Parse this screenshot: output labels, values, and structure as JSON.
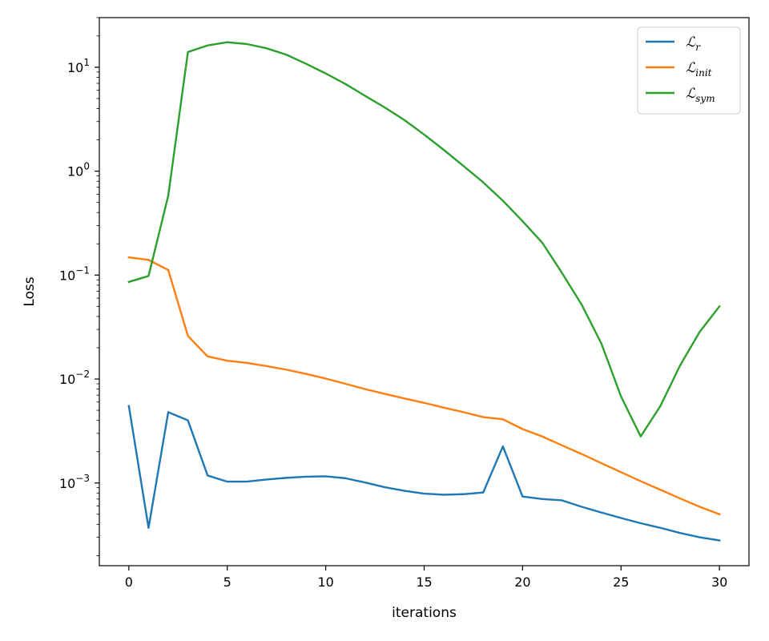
{
  "chart_data": {
    "type": "line",
    "xlabel": "iterations",
    "ylabel": "Loss",
    "yscale": "log",
    "xlim": [
      -1.5,
      31.5
    ],
    "ylim": [
      0.00016,
      30
    ],
    "x_ticks": [
      0,
      5,
      10,
      15,
      20,
      25,
      30
    ],
    "x_tick_labels": [
      "0",
      "5",
      "10",
      "15",
      "20",
      "25",
      "30"
    ],
    "y_ticks": [
      0.001,
      0.01,
      0.1,
      1,
      10
    ],
    "y_tick_labels": [
      {
        "base": "10",
        "exp": "−3"
      },
      {
        "base": "10",
        "exp": "−2"
      },
      {
        "base": "10",
        "exp": "−1"
      },
      {
        "base": "10",
        "exp": "0"
      },
      {
        "base": "10",
        "exp": "1"
      }
    ],
    "grid": false,
    "legend_position": "top-right",
    "x": [
      0,
      1,
      2,
      3,
      4,
      5,
      6,
      7,
      8,
      9,
      10,
      11,
      12,
      13,
      14,
      15,
      16,
      17,
      18,
      19,
      20,
      21,
      22,
      23,
      24,
      25,
      26,
      27,
      28,
      29,
      30
    ],
    "series": [
      {
        "name": "ℒr",
        "legend_main": "ℒ",
        "legend_sub": "r",
        "color": "#1f77b4",
        "values": [
          0.0055,
          0.00037,
          0.0048,
          0.004,
          0.00118,
          0.00103,
          0.00103,
          0.00108,
          0.00112,
          0.00115,
          0.00116,
          0.00111,
          0.00101,
          0.00091,
          0.00084,
          0.00079,
          0.00077,
          0.00078,
          0.00081,
          0.00225,
          0.00074,
          0.0007,
          0.00068,
          0.00059,
          0.00052,
          0.00046,
          0.00041,
          0.00037,
          0.00033,
          0.0003,
          0.00028
        ]
      },
      {
        "name": "ℒinit",
        "legend_main": "ℒ",
        "legend_sub": "init",
        "color": "#ff7f0e",
        "values": [
          0.148,
          0.14,
          0.112,
          0.026,
          0.0165,
          0.015,
          0.0143,
          0.0133,
          0.0123,
          0.0112,
          0.0101,
          0.009,
          0.008,
          0.0072,
          0.0065,
          0.0059,
          0.0053,
          0.0048,
          0.0043,
          0.0041,
          0.0033,
          0.0028,
          0.0023,
          0.0019,
          0.00155,
          0.00127,
          0.00104,
          0.00086,
          0.00071,
          0.00059,
          0.0005
        ]
      },
      {
        "name": "ℒsym",
        "legend_main": "ℒ",
        "legend_sub": "sym",
        "color": "#2ca02c",
        "values": [
          0.086,
          0.098,
          0.58,
          14.0,
          16.2,
          17.4,
          16.7,
          15.2,
          13.2,
          10.8,
          8.7,
          6.9,
          5.3,
          4.1,
          3.1,
          2.25,
          1.6,
          1.12,
          0.78,
          0.52,
          0.33,
          0.205,
          0.105,
          0.052,
          0.022,
          0.0068,
          0.0028,
          0.0055,
          0.0135,
          0.0285,
          0.05
        ]
      }
    ]
  }
}
